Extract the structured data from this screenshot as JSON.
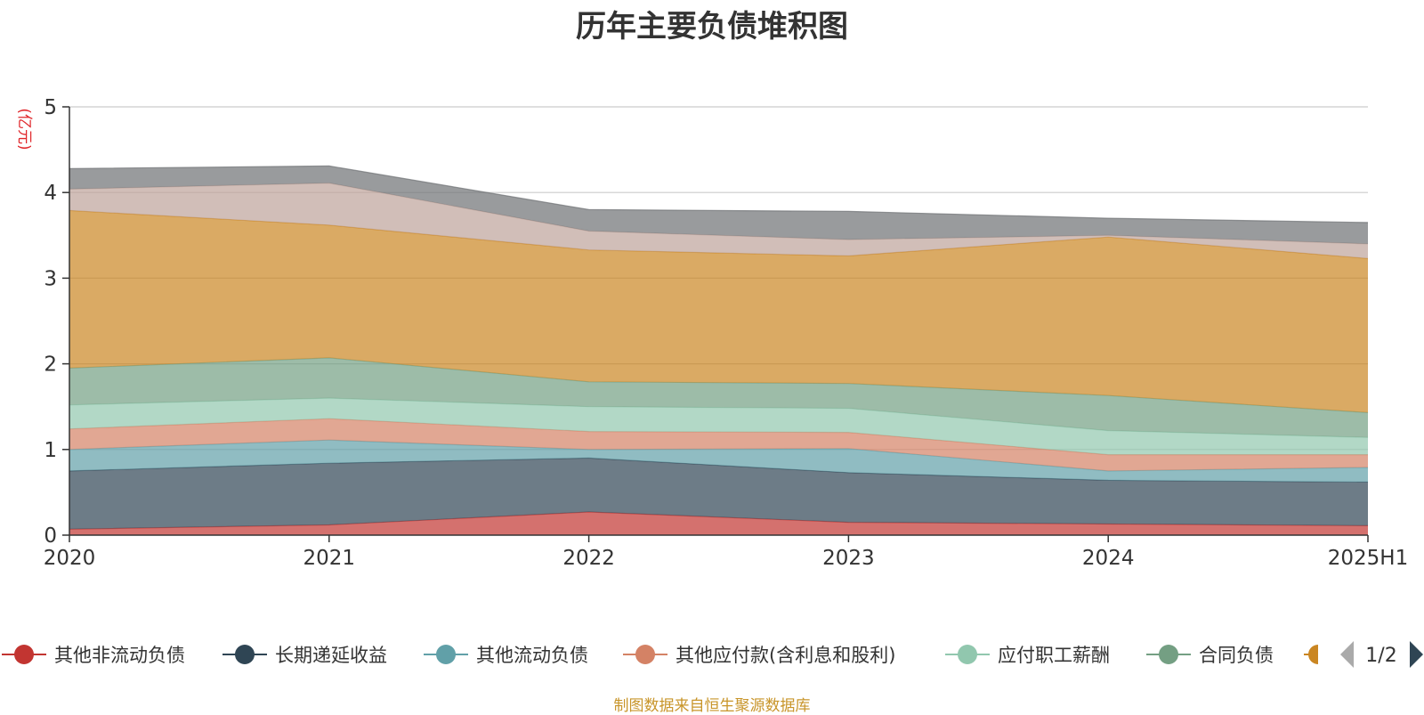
{
  "chart_data": {
    "type": "area",
    "stacked": true,
    "title": "历年主要负债堆积图",
    "ylabel": "(亿元)",
    "categories": [
      "2020",
      "2021",
      "2022",
      "2023",
      "2024",
      "2025H1"
    ],
    "ylim": [
      0,
      5
    ],
    "yticks": [
      "0",
      "1",
      "2",
      "3",
      "4",
      "5"
    ],
    "grid": true,
    "series": [
      {
        "name": "其他非流动负债",
        "color": "#c23531",
        "values": [
          0.07,
          0.12,
          0.27,
          0.15,
          0.13,
          0.11
        ]
      },
      {
        "name": "长期递延收益",
        "color": "#2f4554",
        "values": [
          0.68,
          0.72,
          0.63,
          0.58,
          0.51,
          0.51
        ]
      },
      {
        "name": "其他流动负债",
        "color": "#61a0a8",
        "values": [
          0.25,
          0.27,
          0.1,
          0.28,
          0.11,
          0.17
        ]
      },
      {
        "name": "其他应付款(含利息和股利)",
        "color": "#d48265",
        "values": [
          0.24,
          0.25,
          0.21,
          0.19,
          0.19,
          0.15
        ]
      },
      {
        "name": "应付职工薪酬",
        "color": "#91c7ae",
        "values": [
          0.28,
          0.24,
          0.29,
          0.28,
          0.28,
          0.2
        ]
      },
      {
        "name": "合同负债",
        "color": "#749f83",
        "values": [
          0.43,
          0.47,
          0.29,
          0.29,
          0.41,
          0.29
        ]
      },
      {
        "name": "",
        "color": "#ca8622",
        "values": [
          1.84,
          1.55,
          1.54,
          1.49,
          1.85,
          1.8
        ]
      },
      {
        "name": "",
        "color": "#bda29a",
        "values": [
          0.25,
          0.49,
          0.22,
          0.19,
          0.02,
          0.17
        ]
      },
      {
        "name": "",
        "color": "#6e7074",
        "values": [
          0.24,
          0.2,
          0.25,
          0.33,
          0.2,
          0.25
        ]
      }
    ],
    "legend_position": "bottom"
  },
  "legend": {
    "page_indicator": "1/2",
    "items": [
      {
        "label": "其他非流动负债",
        "color": "#c23531"
      },
      {
        "label": "长期递延收益",
        "color": "#2f4554"
      },
      {
        "label": "其他流动负债",
        "color": "#61a0a8"
      },
      {
        "label": "其他应付款(含利息和股利)",
        "color": "#d48265"
      },
      {
        "label": "应付职工薪酬",
        "color": "#91c7ae"
      },
      {
        "label": "合同负债",
        "color": "#749f83"
      }
    ]
  },
  "footer": {
    "source": "制图数据来自恒生聚源数据库"
  },
  "colors": {
    "ylabel": "#e0262a",
    "source": "#c8952a",
    "grid": "#cccccc",
    "axis": "#333333",
    "pager_prev": "#aaaaaa",
    "pager_next": "#2f4554"
  }
}
